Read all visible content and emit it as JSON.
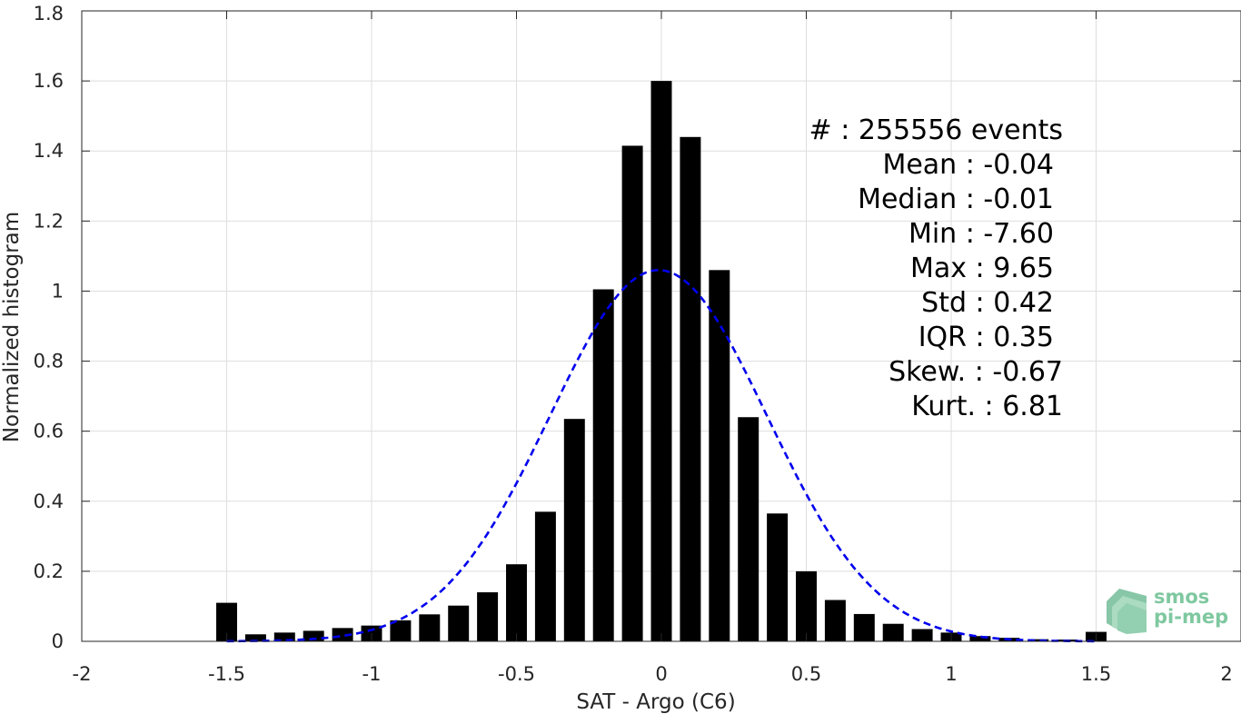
{
  "chart_data": {
    "type": "bar",
    "xlabel": "SAT - Argo (C6)",
    "ylabel": "Normalized histogram",
    "xlim": [
      -2,
      2
    ],
    "ylim": [
      0,
      1.8
    ],
    "xticks": [
      -2,
      -1.5,
      -1,
      -0.5,
      0,
      0.5,
      1,
      1.5,
      2
    ],
    "xtick_labels": [
      "-2",
      "-1.5",
      "-1",
      "-0.5",
      "0",
      "0.5",
      "1",
      "1.5",
      "2"
    ],
    "yticks": [
      0,
      0.2,
      0.4,
      0.6,
      0.8,
      1,
      1.2,
      1.4,
      1.6,
      1.8
    ],
    "ytick_labels": [
      "0",
      "0.2",
      "0.4",
      "0.6",
      "0.8",
      "1",
      "1.2",
      "1.4",
      "1.6",
      "1.8"
    ],
    "grid": true,
    "bar_color": "#000000",
    "bin_width": 0.1,
    "bins": [
      -1.5,
      -1.4,
      -1.3,
      -1.2,
      -1.1,
      -1.0,
      -0.9,
      -0.8,
      -0.7,
      -0.6,
      -0.5,
      -0.4,
      -0.3,
      -0.2,
      -0.1,
      0.0,
      0.1,
      0.2,
      0.3,
      0.4,
      0.5,
      0.6,
      0.7,
      0.8,
      0.9,
      1.0,
      1.1,
      1.2,
      1.3,
      1.4,
      1.5
    ],
    "values": [
      0.11,
      0.02,
      0.025,
      0.03,
      0.038,
      0.045,
      0.06,
      0.077,
      0.102,
      0.14,
      0.22,
      0.37,
      0.635,
      1.005,
      1.415,
      1.6,
      1.44,
      1.06,
      0.64,
      0.365,
      0.2,
      0.118,
      0.078,
      0.05,
      0.035,
      0.025,
      0.015,
      0.01,
      0.006,
      0.005,
      0.027
    ],
    "fit": {
      "type": "gaussian",
      "mean": -0.01,
      "std": 0.375,
      "peak": 1.06,
      "x_range": [
        -1.5,
        1.5
      ],
      "color": "#0000ee",
      "style": "dashed"
    },
    "annotations": [
      "#  : 255556 events",
      "Mean : -0.04",
      "Median : -0.01",
      "Min : -7.60",
      "Max : 9.65",
      "Std : 0.42",
      "IQR : 0.35",
      "Skew. : -0.67",
      "Kurt. : 6.81"
    ]
  },
  "logo": {
    "line1": "smos",
    "line2": "pi-mep",
    "color": "#7fc8a0"
  }
}
